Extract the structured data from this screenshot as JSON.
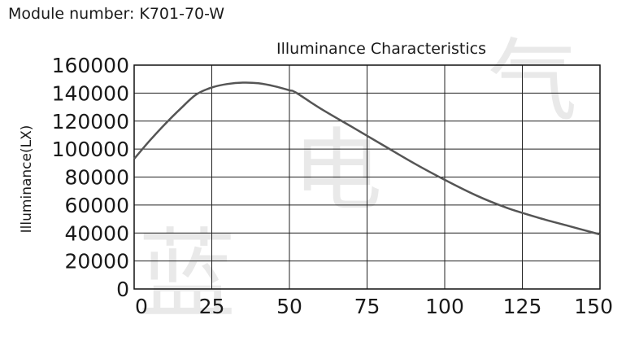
{
  "header": {
    "module_label": "Module number: K701-70-W"
  },
  "chart_data": {
    "type": "line",
    "title": "Illuminance Characteristics",
    "xlabel": "",
    "ylabel": "Illuminance(LX)",
    "xlim": [
      0,
      150
    ],
    "ylim": [
      0,
      160000
    ],
    "x_ticks": [
      "0",
      "25",
      "50",
      "75",
      "100",
      "125",
      "150"
    ],
    "y_ticks": [
      "0",
      "20000",
      "40000",
      "60000",
      "80000",
      "100000",
      "120000",
      "140000",
      "160000"
    ],
    "grid": true,
    "series": [
      {
        "x": [
          0,
          5,
          10,
          15,
          20,
          25,
          30,
          35,
          40,
          45,
          50,
          52,
          60,
          70,
          80,
          90,
          100,
          110,
          120,
          130,
          140,
          150
        ],
        "y": [
          93000,
          106000,
          118000,
          129000,
          139000,
          144000,
          146500,
          147500,
          147000,
          145000,
          142000,
          140500,
          129000,
          116000,
          103000,
          90000,
          78000,
          67000,
          58000,
          51000,
          45000,
          39000
        ]
      }
    ],
    "line_color": "#555555"
  }
}
